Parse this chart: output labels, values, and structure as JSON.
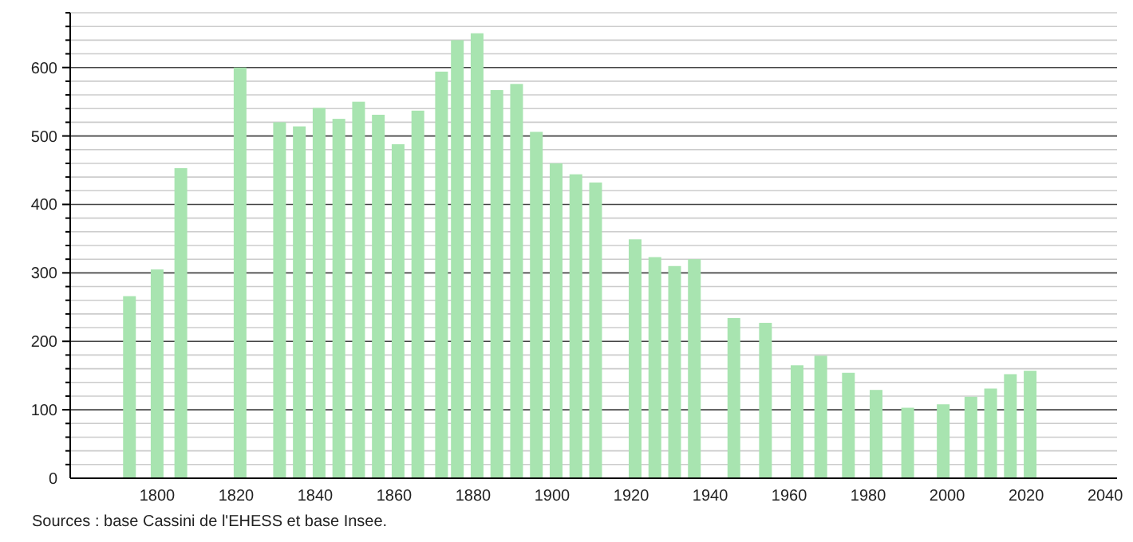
{
  "chart_data": {
    "type": "bar",
    "x": [
      1793,
      1800,
      1806,
      1821,
      1831,
      1836,
      1841,
      1846,
      1851,
      1856,
      1861,
      1866,
      1872,
      1876,
      1881,
      1886,
      1891,
      1896,
      1901,
      1906,
      1911,
      1921,
      1926,
      1931,
      1936,
      1946,
      1954,
      1962,
      1968,
      1975,
      1982,
      1990,
      1999,
      2006,
      2011,
      2016,
      2021
    ],
    "values": [
      266,
      305,
      453,
      600,
      520,
      514,
      541,
      525,
      550,
      531,
      488,
      537,
      594,
      640,
      650,
      567,
      576,
      506,
      460,
      444,
      432,
      349,
      323,
      310,
      320,
      234,
      227,
      165,
      179,
      154,
      129,
      103,
      108,
      119,
      131,
      152,
      157
    ],
    "color": "#a8e4b0",
    "xlim": [
      1778,
      2043
    ],
    "xticks": [
      1800,
      1820,
      1840,
      1860,
      1880,
      1900,
      1920,
      1940,
      1960,
      1980,
      2000,
      2020,
      2040
    ],
    "ylim": [
      0,
      680
    ],
    "yticks": [
      0,
      {
        "value": 20,
        "label": null
      },
      {
        "value": 40,
        "label": null
      },
      {
        "value": 60,
        "label": null
      },
      {
        "value": 80,
        "label": null
      },
      100,
      {
        "value": 120,
        "label": null
      },
      {
        "value": 140,
        "label": null
      },
      {
        "value": 160,
        "label": null
      },
      {
        "value": 180,
        "label": null
      },
      200,
      {
        "value": 220,
        "label": null
      },
      {
        "value": 240,
        "label": null
      },
      {
        "value": 260,
        "label": null
      },
      {
        "value": 280,
        "label": null
      },
      300,
      {
        "value": 320,
        "label": null
      },
      {
        "value": 340,
        "label": null
      },
      {
        "value": 360,
        "label": null
      },
      {
        "value": 380,
        "label": null
      },
      400,
      {
        "value": 420,
        "label": null
      },
      {
        "value": 440,
        "label": null
      },
      {
        "value": 460,
        "label": null
      },
      {
        "value": 480,
        "label": null
      },
      500,
      {
        "value": 520,
        "label": null
      },
      {
        "value": 540,
        "label": null
      },
      {
        "value": 560,
        "label": null
      },
      {
        "value": 580,
        "label": null
      },
      600,
      {
        "value": 620,
        "label": null
      },
      {
        "value": 640,
        "label": null
      },
      {
        "value": 660,
        "label": null
      },
      {
        "value": 680,
        "label": null
      }
    ],
    "grid": "y",
    "annotations": [
      "Sources : base Cassini de l'EHESS et base Insee."
    ]
  }
}
